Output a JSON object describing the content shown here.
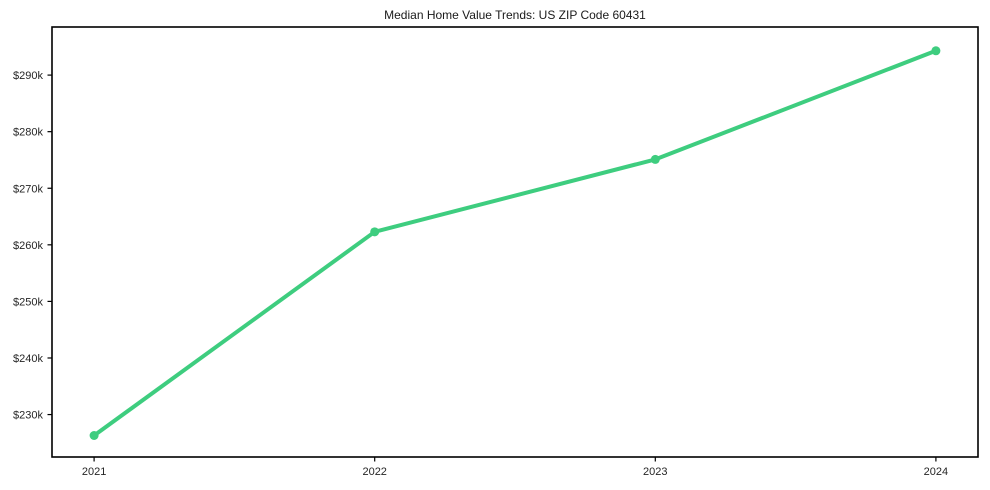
{
  "chart_data": {
    "type": "line",
    "title": "Median Home Value Trends: US ZIP Code 60431",
    "x": [
      2021,
      2022,
      2023,
      2024
    ],
    "x_tick_labels": [
      "2021",
      "2022",
      "2023",
      "2024"
    ],
    "series": [
      {
        "name": "Median Home Value",
        "values": [
          226300,
          262300,
          275100,
          294300
        ]
      }
    ],
    "y_ticks": [
      230000,
      240000,
      250000,
      260000,
      270000,
      280000,
      290000
    ],
    "y_tick_labels": [
      "$230k",
      "$240k",
      "$250k",
      "$260k",
      "$270k",
      "$280k",
      "$290k"
    ],
    "xlim": [
      2020.85,
      2024.15
    ],
    "ylim": [
      222500,
      298500
    ],
    "grid": false,
    "legend_position": "none",
    "line_color": "#3ecd7f",
    "marker": "circle",
    "marker_color": "#3ecd7f",
    "frame_color": "#000000",
    "tick_label_color": "#262626",
    "background_color": "#ffffff"
  }
}
